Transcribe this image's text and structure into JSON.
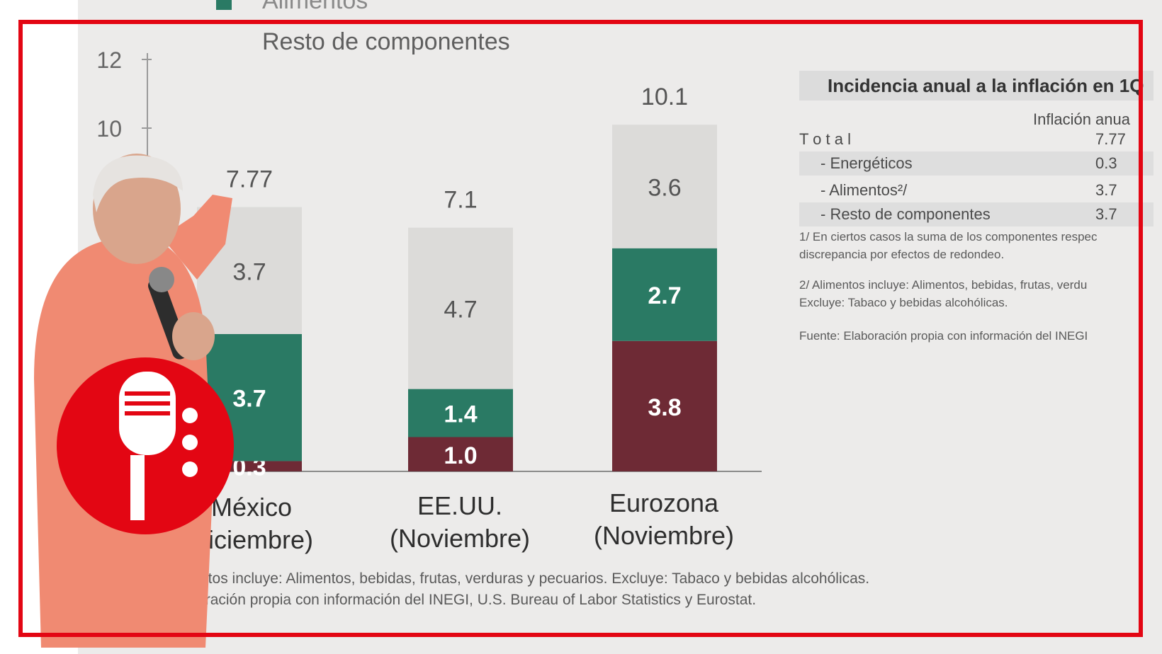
{
  "legend": {
    "partial_top": "Alimentos",
    "items": [
      "Resto de componentes"
    ]
  },
  "chart_data": {
    "type": "bar",
    "stacked": true,
    "categories": [
      [
        "México",
        "Diciembre)"
      ],
      [
        "EE.UU.",
        "(Noviembre)"
      ],
      [
        "Eurozona",
        "(Noviembre)"
      ]
    ],
    "totals": [
      "7.77",
      "7.1",
      "10.1"
    ],
    "series": [
      {
        "name": "Energéticos",
        "color": "#6e2a35",
        "values": [
          0.3,
          1.0,
          3.8
        ],
        "labels": [
          "0.3",
          "1.0",
          "3.8"
        ]
      },
      {
        "name": "Alimentos",
        "color": "#2a7a64",
        "values": [
          3.7,
          1.4,
          2.7
        ],
        "labels": [
          "3.7",
          "1.4",
          "2.7"
        ]
      },
      {
        "name": "Resto de componentes",
        "color": "#dcdbd9",
        "values": [
          3.7,
          4.7,
          3.6
        ],
        "labels": [
          "3.7",
          "4.7",
          "3.6"
        ]
      }
    ],
    "yticks": [
      "12",
      "10"
    ],
    "ylim": [
      0,
      12
    ]
  },
  "footnotes": [
    "ntos incluye: Alimentos, bebidas, frutas, verduras y pecuarios. Excluye: Tabaco y bebidas alcohólicas.",
    "laboración propia con información del INEGI, U.S. Bureau of Labor Statistics y Eurostat."
  ],
  "table": {
    "title": "Incidencia anual a la inflación en 1Q",
    "column": "Inflación anua",
    "rows": [
      {
        "label": "T o t a l",
        "value": "7.77"
      },
      {
        "label": "- Energéticos",
        "value": "0.3"
      },
      {
        "label": "- Alimentos²/",
        "value": "3.7"
      },
      {
        "label": "- Resto de componentes",
        "value": "3.7"
      }
    ],
    "notes": [
      "1/ En ciertos casos la suma de los componentes respec",
      "discrepancia por efectos de redondeo.",
      "2/ Alimentos incluye: Alimentos, bebidas, frutas, verdu",
      "Excluye: Tabaco y bebidas alcohólicas.",
      "Fuente: Elaboración propia con información del INEGI"
    ]
  },
  "colors": {
    "frame": "#e30613",
    "logo": "#e30613"
  },
  "logo_icon": "microphone-icon"
}
